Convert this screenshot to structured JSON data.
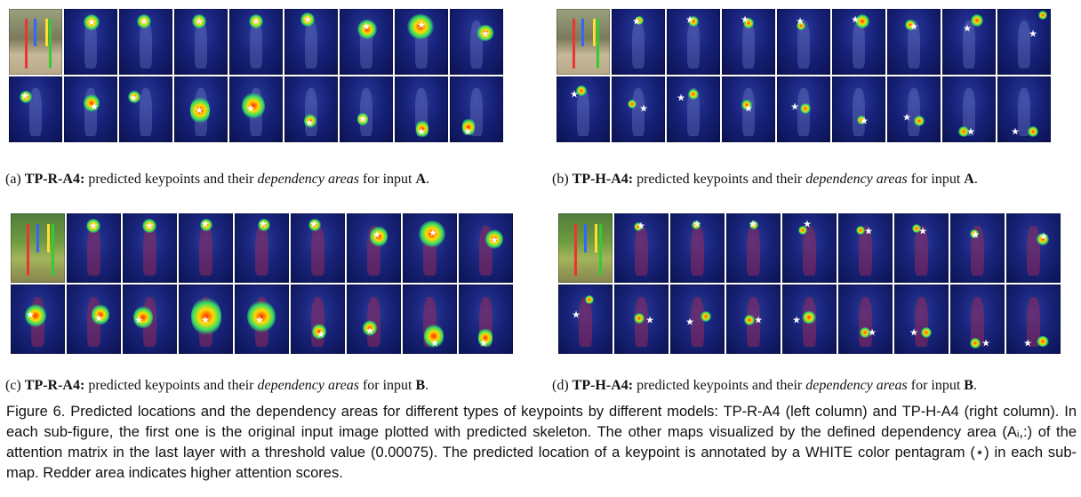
{
  "subfigures": [
    {
      "label": "(a)",
      "model": "TP-R-A4:",
      "text_pre": "predicted keypoints and their",
      "emph": "dependency areas",
      "text_post": "for input",
      "input": "A",
      "end": "."
    },
    {
      "label": "(b)",
      "model": "TP-H-A4:",
      "text_pre": "predicted keypoints and their",
      "emph": "dependency areas",
      "text_post": "for input",
      "input": "A",
      "end": "."
    },
    {
      "label": "(c)",
      "model": "TP-R-A4:",
      "text_pre": "predicted keypoints and their",
      "emph": "dependency areas",
      "text_post": "for input",
      "input": "B",
      "end": "."
    },
    {
      "label": "(d)",
      "model": "TP-H-A4:",
      "text_pre": "predicted keypoints and their",
      "emph": "dependency areas",
      "text_post": "for input",
      "input": "B",
      "end": "."
    }
  ],
  "caption": {
    "prefix": "Figure 6.",
    "text": "Predicted locations and the dependency areas for different types of keypoints by different models: TP-R-A4 (left column) and TP-H-A4 (right column). In each sub-figure, the first one is the original input image plotted with predicted skeleton. The other maps visualized by the defined dependency area (Aᵢ,:) of the attention matrix in the last layer with a threshold value (0.00075). The predicted location of a keypoint is annotated by a WHITE color pentagram (⋆) in each sub-map. Redder area indicates higher attention scores."
  },
  "star_glyph": "★",
  "colors": {
    "heat_low": "#0b1250",
    "heat_high": "#ff2a00",
    "star": "#ffffff"
  }
}
